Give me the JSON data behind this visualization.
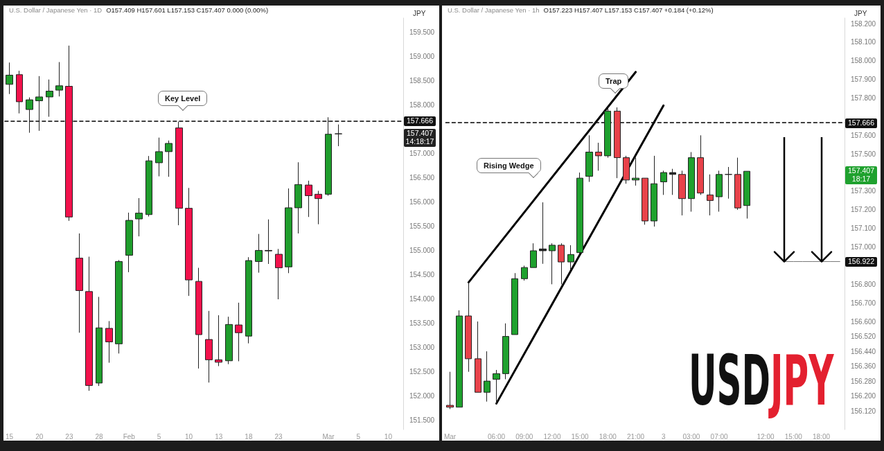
{
  "chart_data": [
    {
      "type": "candlestick",
      "title": "U.S. Dollar / Japanese Yen · 1D",
      "subtitle": "O157.409 H157.601 L157.153 C157.407 0.000 (0.00%)",
      "ylabel": "JPY",
      "categories": [
        "15",
        null,
        null,
        "20",
        null,
        null,
        "23",
        null,
        null,
        "28",
        null,
        null,
        "Feb",
        null,
        null,
        "5",
        null,
        null,
        "10",
        null,
        null,
        "13",
        null,
        null,
        "18",
        null,
        null,
        "23",
        null,
        null,
        null,
        null,
        "Mar",
        null,
        null,
        "5",
        null,
        null,
        "10",
        null
      ],
      "ohlc": [
        [
          158.43,
          158.88,
          158.23,
          158.62
        ],
        [
          158.63,
          158.71,
          157.83,
          158.07
        ],
        [
          157.91,
          158.16,
          157.43,
          158.11
        ],
        [
          158.09,
          158.6,
          157.47,
          158.17
        ],
        [
          158.17,
          158.53,
          157.76,
          158.29
        ],
        [
          158.31,
          158.89,
          158.18,
          158.4
        ],
        [
          158.39,
          159.23,
          155.61,
          155.69
        ],
        [
          154.84,
          155.35,
          153.3,
          154.17
        ],
        [
          154.15,
          154.87,
          152.1,
          152.21
        ],
        [
          152.26,
          154.04,
          152.2,
          153.4
        ],
        [
          153.39,
          153.54,
          152.68,
          153.11
        ],
        [
          153.07,
          154.8,
          152.87,
          154.77
        ],
        [
          154.9,
          155.78,
          154.55,
          155.62
        ],
        [
          155.65,
          156.08,
          155.29,
          155.77
        ],
        [
          155.74,
          156.95,
          155.7,
          156.85
        ],
        [
          156.81,
          157.33,
          156.53,
          157.04
        ],
        [
          157.04,
          157.27,
          156.52,
          157.21
        ],
        [
          157.53,
          157.66,
          155.52,
          155.87
        ],
        [
          155.87,
          156.29,
          154.06,
          154.39
        ],
        [
          154.36,
          154.64,
          152.56,
          153.26
        ],
        [
          153.16,
          153.75,
          152.27,
          152.74
        ],
        [
          152.74,
          153.66,
          152.61,
          152.69
        ],
        [
          152.72,
          153.63,
          152.65,
          153.47
        ],
        [
          153.46,
          153.92,
          152.71,
          153.3
        ],
        [
          153.23,
          154.86,
          153.08,
          154.79
        ],
        [
          154.77,
          155.34,
          154.54,
          155.0
        ],
        [
          155.0,
          155.64,
          154.72,
          154.99
        ],
        [
          154.92,
          155.03,
          153.99,
          154.64
        ],
        [
          154.66,
          156.28,
          154.53,
          155.88
        ],
        [
          155.88,
          156.82,
          155.35,
          156.36
        ],
        [
          156.35,
          156.44,
          155.69,
          156.13
        ],
        [
          156.16,
          156.23,
          155.54,
          156.07
        ],
        [
          156.16,
          157.75,
          156.13,
          157.4
        ],
        [
          157.409,
          157.601,
          157.153,
          157.407
        ],
        null,
        null,
        null,
        null,
        null,
        null
      ],
      "colors": [
        "#1f9d2c",
        "#f2124c",
        "#1f9d2c",
        "#1f9d2c",
        "#1f9d2c",
        "#1f9d2c",
        "#f2124c",
        "#f2124c",
        "#f2124c",
        "#1f9d2c",
        "#f2124c",
        "#1f9d2c",
        "#1f9d2c",
        "#1f9d2c",
        "#1f9d2c",
        "#1f9d2c",
        "#1f9d2c",
        "#f2124c",
        "#f2124c",
        "#f2124c",
        "#f2124c",
        "#f2124c",
        "#1f9d2c",
        "#f2124c",
        "#1f9d2c",
        "#1f9d2c",
        "#222222",
        "#f2124c",
        "#1f9d2c",
        "#1f9d2c",
        "#f2124c",
        "#f2124c",
        "#1f9d2c",
        "#222222",
        null,
        null,
        null,
        null,
        null,
        null
      ],
      "ylim": [
        151.3,
        159.8
      ],
      "yticks": [
        {
          "value": 151.5,
          "label": "151.500"
        },
        {
          "value": 152,
          "label": "152.000"
        },
        {
          "value": 152.5,
          "label": "152.500"
        },
        {
          "value": 153,
          "label": "153.000"
        },
        {
          "value": 153.5,
          "label": "153.500"
        },
        {
          "value": 154,
          "label": "154.000"
        },
        {
          "value": 154.5,
          "label": "154.500"
        },
        {
          "value": 155,
          "label": "155.000"
        },
        {
          "value": 155.5,
          "label": "155.500"
        },
        {
          "value": 156,
          "label": "156.000"
        },
        {
          "value": 156.5,
          "label": "156.500"
        },
        {
          "value": 157,
          "label": "157.000"
        },
        {
          "value": 158,
          "label": "158.000"
        },
        {
          "value": 158.5,
          "label": "158.500"
        },
        {
          "value": 159,
          "label": "159.000"
        },
        {
          "value": 159.5,
          "label": "159.500"
        }
      ],
      "ref_lines": [
        {
          "axis": "y",
          "value": 157.666,
          "label": "157.666",
          "color": "#000000",
          "line_style": "dashed"
        }
      ],
      "annotations": [
        "Key Level",
        "157.407\n14:18:17"
      ]
    },
    {
      "type": "candlestick",
      "title": "U.S. Dollar / Japanese Yen · 1h",
      "subtitle": "O157.223 H157.407 L157.153 C157.407 +0.184 (+0.12%)",
      "ylabel": "JPY",
      "categories": [
        "Mar",
        null,
        null,
        null,
        null,
        "06:00",
        null,
        null,
        "09:00",
        null,
        null,
        "12:00",
        null,
        null,
        "15:00",
        null,
        null,
        "18:00",
        null,
        null,
        "21:00",
        null,
        null,
        "3",
        null,
        null,
        "03:00",
        null,
        null,
        "07:00",
        null,
        null,
        null,
        null,
        "12:00",
        null,
        null,
        "15:00",
        null,
        null,
        "18:00",
        null,
        null
      ],
      "ohlc": [
        [
          156.15,
          156.33,
          156.13,
          156.14
        ],
        [
          156.14,
          156.66,
          156.14,
          156.63
        ],
        [
          156.63,
          156.81,
          156.33,
          156.4
        ],
        [
          156.4,
          156.6,
          156.22,
          156.22
        ],
        [
          156.22,
          156.44,
          156.17,
          156.28
        ],
        [
          156.29,
          156.34,
          156.16,
          156.32
        ],
        [
          156.32,
          156.59,
          156.29,
          156.52
        ],
        [
          156.53,
          156.86,
          156.53,
          156.83
        ],
        [
          156.83,
          156.9,
          156.82,
          156.89
        ],
        [
          156.89,
          157.02,
          156.89,
          156.98
        ],
        [
          156.98,
          157.24,
          156.91,
          156.99
        ],
        [
          156.98,
          157.02,
          156.8,
          157.01
        ],
        [
          157.01,
          157.02,
          156.8,
          156.92
        ],
        [
          156.92,
          157.01,
          156.88,
          156.96
        ],
        [
          156.97,
          157.4,
          156.96,
          157.37
        ],
        [
          157.38,
          157.6,
          157.35,
          157.51
        ],
        [
          157.51,
          157.56,
          157.41,
          157.49
        ],
        [
          157.49,
          157.75,
          157.48,
          157.73
        ],
        [
          157.73,
          157.75,
          157.37,
          157.48
        ],
        [
          157.48,
          157.49,
          157.34,
          157.36
        ],
        [
          157.36,
          157.48,
          157.33,
          157.37
        ],
        [
          157.37,
          157.37,
          157.12,
          157.14
        ],
        [
          157.14,
          157.49,
          157.11,
          157.34
        ],
        [
          157.35,
          157.41,
          157.28,
          157.4
        ],
        [
          157.4,
          157.42,
          157.28,
          157.39
        ],
        [
          157.39,
          157.41,
          157.17,
          157.26
        ],
        [
          157.26,
          157.51,
          157.19,
          157.48
        ],
        [
          157.48,
          157.6,
          157.28,
          157.29
        ],
        [
          157.28,
          157.39,
          157.17,
          157.25
        ],
        [
          157.27,
          157.41,
          157.19,
          157.39
        ],
        [
          157.39,
          157.43,
          157.26,
          157.39
        ],
        [
          157.39,
          157.48,
          157.2,
          157.21
        ],
        [
          157.223,
          157.407,
          157.153,
          157.407
        ],
        null,
        null,
        null,
        null,
        null,
        null,
        null,
        null,
        null,
        null
      ],
      "colors": [
        "#e8424a",
        "#1fa12e",
        "#e8424a",
        "#e8424a",
        "#1fa12e",
        "#1fa12e",
        "#1fa12e",
        "#1fa12e",
        "#1fa12e",
        "#1fa12e",
        "#222222",
        "#1fa12e",
        "#e8424a",
        "#1fa12e",
        "#1fa12e",
        "#1fa12e",
        "#e8424a",
        "#1fa12e",
        "#e8424a",
        "#e8424a",
        "#1fa12e",
        "#e8424a",
        "#1fa12e",
        "#1fa12e",
        "#222222",
        "#e8424a",
        "#1fa12e",
        "#e8424a",
        "#e8424a",
        "#1fa12e",
        "#222222",
        "#e8424a",
        "#1fa12e",
        null,
        null,
        null,
        null,
        null,
        null,
        null,
        null,
        null,
        null
      ],
      "series": [
        {
          "type": "line",
          "color": "#000000",
          "values": [
            null,
            null,
            156.81,
            null,
            null,
            null,
            null,
            null,
            null,
            null,
            null,
            null,
            null,
            null,
            null,
            null,
            null,
            null,
            null,
            null,
            157.94,
            null,
            null,
            null,
            null,
            null,
            null,
            null,
            null,
            null,
            null,
            null,
            null,
            null,
            null,
            null,
            null,
            null,
            null,
            null,
            null,
            null,
            null
          ]
        },
        {
          "type": "line",
          "color": "#000000",
          "values": [
            null,
            null,
            null,
            null,
            null,
            156.16,
            null,
            null,
            null,
            null,
            null,
            null,
            null,
            null,
            null,
            null,
            null,
            null,
            null,
            null,
            null,
            null,
            null,
            157.76,
            null,
            null,
            null,
            null,
            null,
            null,
            null,
            null,
            null,
            null,
            null,
            null,
            null,
            null,
            null,
            null,
            null,
            null,
            null
          ]
        },
        {
          "type": "line",
          "color": "#777777",
          "values": [
            null,
            null,
            null,
            null,
            null,
            null,
            null,
            null,
            null,
            null,
            null,
            null,
            null,
            null,
            null,
            null,
            null,
            null,
            null,
            null,
            null,
            null,
            null,
            null,
            null,
            null,
            null,
            null,
            null,
            null,
            null,
            null,
            null,
            null,
            null,
            null,
            156.922,
            156.922,
            156.922,
            156.922,
            156.922,
            156.922,
            156.922
          ]
        }
      ],
      "ylim": [
        156.02,
        158.23
      ],
      "yticks": [
        {
          "value": 156.12,
          "label": "156.120"
        },
        {
          "value": 156.2,
          "label": "156.200"
        },
        {
          "value": 156.28,
          "label": "156.280"
        },
        {
          "value": 156.36,
          "label": "156.360"
        },
        {
          "value": 156.44,
          "label": "156.440"
        },
        {
          "value": 156.52,
          "label": "156.520"
        },
        {
          "value": 156.6,
          "label": "156.600"
        },
        {
          "value": 156.7,
          "label": "156.700"
        },
        {
          "value": 156.8,
          "label": "156.800"
        },
        {
          "value": 157,
          "label": "157.000"
        },
        {
          "value": 157.1,
          "label": "157.100"
        },
        {
          "value": 157.2,
          "label": "157.200"
        },
        {
          "value": 157.3,
          "label": "157.300"
        },
        {
          "value": 157.5,
          "label": "157.500"
        },
        {
          "value": 157.6,
          "label": "157.600"
        },
        {
          "value": 157.8,
          "label": "157.800"
        },
        {
          "value": 157.9,
          "label": "157.900"
        },
        {
          "value": 158,
          "label": "158.000"
        },
        {
          "value": 158.1,
          "label": "158.100"
        },
        {
          "value": 158.2,
          "label": "158.200"
        }
      ],
      "ref_lines": [
        {
          "axis": "y",
          "value": 157.666,
          "label": "157.666",
          "color": "#000000",
          "line_style": "dashed"
        }
      ],
      "annotations": [
        "Trap",
        "Rising Wedge",
        "157.407\n18:17",
        "156.922",
        "USD",
        "JPY"
      ]
    }
  ]
}
